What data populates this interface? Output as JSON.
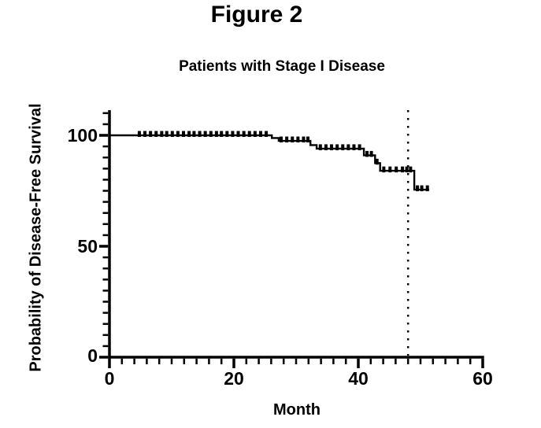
{
  "figure": {
    "title": "Figure 2"
  },
  "chart_data": {
    "type": "line",
    "subtype": "kaplan_meier_step_curve",
    "title": "Patients with Stage I Disease",
    "xlabel": "Month",
    "ylabel": "Probability of Disease-Free Survival",
    "xlim": [
      0,
      60
    ],
    "ylim": [
      0,
      111
    ],
    "grid": "off",
    "legend": "none",
    "x_major_ticks": [
      "0",
      "20",
      "40",
      "60"
    ],
    "x_minor_tick_interval": 2,
    "y_major_ticks": [
      "100",
      "50",
      "0"
    ],
    "y_minor_tick_interval": 5,
    "axis_color": "#000000",
    "line_color": "#000000",
    "reference_line": {
      "orientation": "vertical",
      "x": 48,
      "style": "dotted",
      "color": "#000000"
    },
    "series": [
      {
        "name": "Patients with Stage I Disease",
        "steps": [
          [
            0,
            100
          ],
          [
            26.1,
            100
          ],
          [
            26.1,
            98.8
          ],
          [
            27.2,
            98.8
          ],
          [
            27.2,
            97.5
          ],
          [
            32.3,
            97.5
          ],
          [
            32.3,
            95.6
          ],
          [
            33.3,
            95.6
          ],
          [
            33.3,
            94
          ],
          [
            40.9,
            94
          ],
          [
            40.9,
            91
          ],
          [
            42.7,
            91
          ],
          [
            42.7,
            87.5
          ],
          [
            43.5,
            87.5
          ],
          [
            43.5,
            84
          ],
          [
            49.0,
            84
          ],
          [
            49.0,
            75.5
          ],
          [
            51.4,
            75.5
          ]
        ],
        "censor_marks": [
          [
            4.8,
            100
          ],
          [
            5.7,
            100
          ],
          [
            6.6,
            100
          ],
          [
            7.5,
            100
          ],
          [
            8.4,
            100
          ],
          [
            9.2,
            100
          ],
          [
            10.1,
            100
          ],
          [
            11.0,
            100
          ],
          [
            11.9,
            100
          ],
          [
            12.8,
            100
          ],
          [
            13.6,
            100
          ],
          [
            14.5,
            100
          ],
          [
            15.4,
            100
          ],
          [
            16.3,
            100
          ],
          [
            17.2,
            100
          ],
          [
            18.0,
            100
          ],
          [
            18.9,
            100
          ],
          [
            19.8,
            100
          ],
          [
            20.7,
            100
          ],
          [
            21.6,
            100
          ],
          [
            22.5,
            100
          ],
          [
            23.4,
            100
          ],
          [
            24.3,
            100
          ],
          [
            25.2,
            100
          ],
          [
            27.6,
            97.5
          ],
          [
            28.5,
            97.5
          ],
          [
            29.4,
            97.5
          ],
          [
            30.3,
            97.5
          ],
          [
            31.2,
            97.5
          ],
          [
            31.9,
            97.5
          ],
          [
            33.9,
            94
          ],
          [
            34.8,
            94
          ],
          [
            35.7,
            94
          ],
          [
            36.6,
            94
          ],
          [
            37.5,
            94
          ],
          [
            38.4,
            94
          ],
          [
            39.3,
            94
          ],
          [
            40.2,
            94
          ],
          [
            41.4,
            91
          ],
          [
            42.1,
            91
          ],
          [
            43.0,
            87.5
          ],
          [
            44.1,
            84
          ],
          [
            45.1,
            84
          ],
          [
            46.1,
            84
          ],
          [
            47.1,
            84
          ],
          [
            47.8,
            84
          ],
          [
            48.4,
            84
          ],
          [
            49.5,
            75.5
          ],
          [
            50.2,
            75.5
          ],
          [
            51.1,
            75.5
          ]
        ]
      }
    ]
  }
}
